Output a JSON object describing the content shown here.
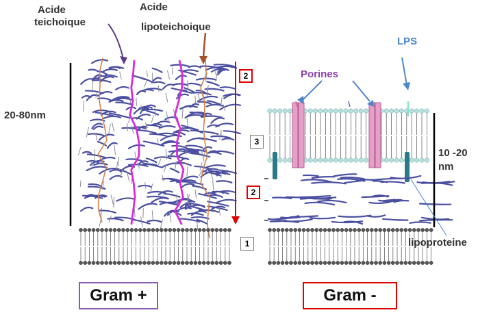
{
  "labels": {
    "acide_teichoique": [
      "Acide",
      "teichoique"
    ],
    "acide_lipoteichoique": [
      "Acide",
      "lipoteichoique"
    ],
    "thickness_gram_pos": "20-80nm",
    "thickness_gram_neg": [
      "10 -20",
      "nm"
    ],
    "lps": "LPS",
    "porines": "Porines",
    "lipoproteine": "lipoproteine"
  },
  "badges": [
    "1",
    "2",
    "3"
  ],
  "panels": {
    "gram_pos": "Gram +",
    "gram_neg": "Gram -"
  },
  "colors": {
    "peptidoglycan": "#4a4fa0",
    "teichoic_acid": "#d4824a",
    "lipoteichoic_acid": "#d82ad8",
    "porin": "#e6a0c8",
    "lps": "#8ae0d0",
    "lipoprotein": "#2a7a8a",
    "membrane_head": "#b9e2df",
    "red_box": "#e00000",
    "purple_box": "#8a5ab0",
    "label_blue": "#4a86c8",
    "label_purple": "#8a3ea8"
  }
}
